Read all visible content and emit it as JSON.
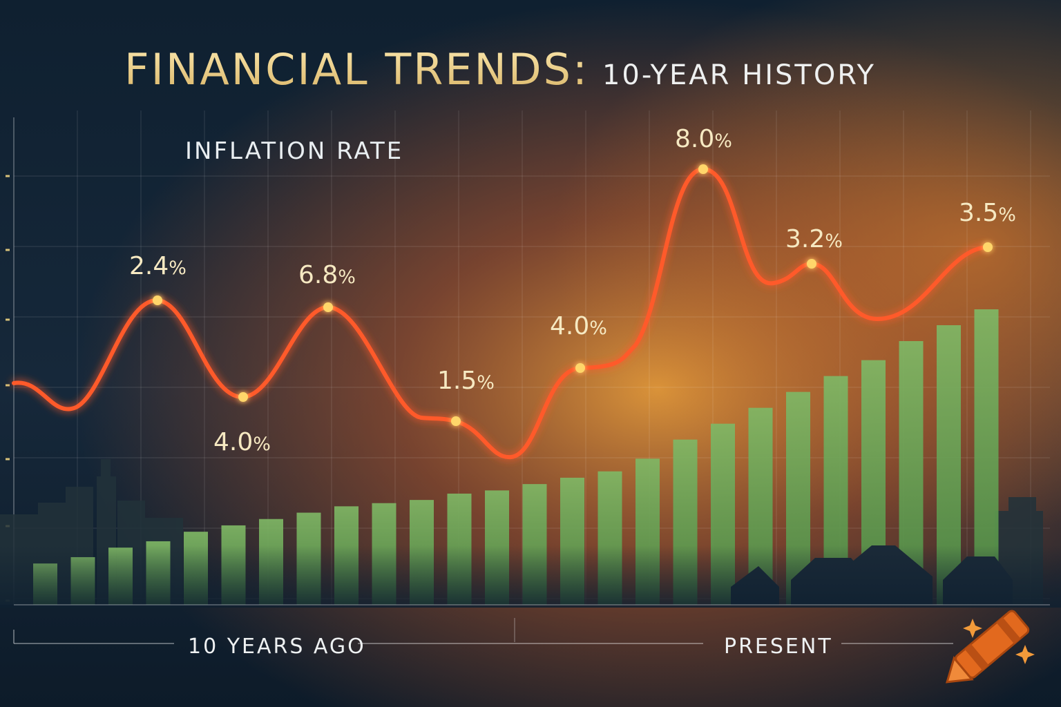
{
  "title": {
    "main": "FINANCIAL TRENDS:",
    "sub": "10-YEAR HISTORY"
  },
  "chart_data": {
    "type": "line",
    "series": [
      {
        "name": "INFLATION RATE",
        "labels": [
          "2.4",
          "4.0",
          "6.8",
          "1.5",
          "4.0",
          "8.0",
          "3.2",
          "3.5"
        ],
        "unit": "%"
      }
    ],
    "x_labels": [
      "10 YEARS AGO",
      "PRESENT"
    ],
    "bars": {
      "count": 26,
      "values": [
        13,
        15,
        18,
        20,
        23,
        25,
        27,
        29,
        31,
        32,
        33,
        35,
        36,
        38,
        40,
        42,
        46,
        52,
        57,
        62,
        67,
        72,
        77,
        83,
        88,
        93
      ]
    },
    "grid": true,
    "colors": {
      "line": "#ff5a2a",
      "bars": "#6fa65a",
      "title_gold": "#f2d58a",
      "labels": "#f6e9c2"
    }
  }
}
